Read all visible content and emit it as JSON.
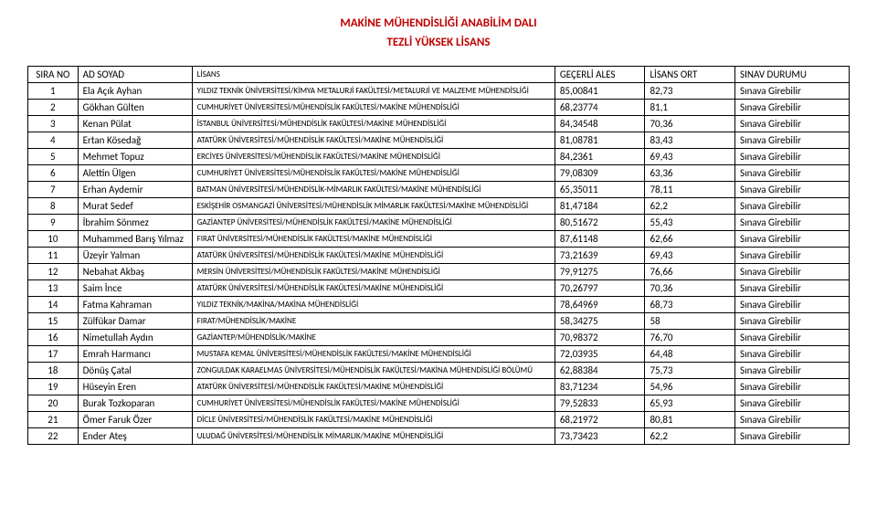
{
  "title": "MAKİNE MÜHENDİSLİĞİ ANABİLİM DALI",
  "subtitle": "TEZLİ YÜKSEK LİSANS",
  "columns": [
    "SIRA NO",
    "AD SOYAD",
    "LİSANS",
    "GEÇERLİ ALES",
    "LİSANS ORT",
    "SINAV DURUMU"
  ],
  "rows": [
    [
      "1",
      "Ela Açık Ayhan",
      "YILDIZ TEKNİK ÜNİVERSİTESİ/KİMYA METALURJİ FAKÜLTESİ/METALURJİ VE MALZEME MÜHENDİSLİĞİ",
      "85,00841",
      "82,73",
      "Sınava Girebilir"
    ],
    [
      "2",
      "Gökhan Gülten",
      "CUMHURİYET ÜNİVERSİTESİ/MÜHENDİSLİK FAKÜLTESİ/MAKİNE MÜHENDİSLİĞİ",
      "68,23774",
      "81,1",
      "Sınava Girebilir"
    ],
    [
      "3",
      "Kenan Pülat",
      "İSTANBUL ÜNİVERSİTESİ/MÜHENDİSLİK FAKÜLTESİ/MAKİNE MÜHENDİSLİĞİ",
      "84,34548",
      "70,36",
      "Sınava Girebilir"
    ],
    [
      "4",
      "Ertan Kösedağ",
      "ATATÜRK ÜNİVERSİTESİ/MÜHENDİSLİK FAKÜLTESİ/MAKİNE MÜHENDİSLİĞİ",
      "81,08781",
      "83,43",
      "Sınava Girebilir"
    ],
    [
      "5",
      "Mehmet Topuz",
      "ERCİYES ÜNİVERSİTESİ/MÜHENDİSLİK FAKÜLTESİ/MAKİNE MÜHENDİSLİĞİ",
      "84,2361",
      "69,43",
      "Sınava Girebilir"
    ],
    [
      "6",
      "Alettin Ülgen",
      "CUMHURİYET ÜNİVERSİTESİ/MÜHENDİSLİK FAKÜLTESİ/MAKİNE MÜHENDİSLİĞİ",
      "79,08309",
      "63,36",
      "Sınava Girebilir"
    ],
    [
      "7",
      "Erhan Aydemir",
      "BATMAN ÜNİVERSİTESİ/MÜHENDİSLİK-MİMARLIK FAKÜLTESİ/MAKİNE MÜHENDİSLİĞİ",
      "65,35011",
      "78,11",
      "Sınava Girebilir"
    ],
    [
      "8",
      "Murat Sedef",
      "ESKİŞEHİR OSMANGAZİ ÜNİVERSİTESİ/MÜHENDİSLİK MİMARLIK FAKÜLTESİ/MAKİNE MÜHENDİSLİĞİ",
      "81,47184",
      "62,2",
      "Sınava Girebilir"
    ],
    [
      "9",
      "İbrahim Sönmez",
      "GAZİANTEP ÜNİVERSİTESİ/MÜHENDİSLİK FAKÜLTESİ/MAKİNE MÜHENDİSLİĞİ",
      "80,51672",
      "55,43",
      "Sınava Girebilir"
    ],
    [
      "10",
      "Muhammed Barış Yılmaz",
      "FIRAT ÜNİVERSİTESİ/MÜHENDİSLİK FAKÜLTESİ/MAKİNE MÜHENDİSLİĞİ",
      "87,61148",
      "62,66",
      "Sınava Girebilir"
    ],
    [
      "11",
      "Üzeyir Yalman",
      "ATATÜRK ÜNİVERSİTESİ/MÜHENDİSLİK FAKÜLTESİ/MAKİNE MÜHENDİSLİĞİ",
      "73,21639",
      "69,43",
      "Sınava Girebilir"
    ],
    [
      "12",
      "Nebahat Akbaş",
      "MERSİN ÜNİVERSİTESİ/MÜHENDİSLİK FAKÜLTESİ/MAKİNE MÜHENDİSLİĞİ",
      "79,91275",
      "76,66",
      "Sınava Girebilir"
    ],
    [
      "13",
      "Saim İnce",
      "ATATÜRK ÜNİVERSİTESİ/MÜHENDİSLİK FAKÜLTESİ/MAKİNE MÜHENDİSLİĞİ",
      "70,26797",
      "70,36",
      "Sınava Girebilir"
    ],
    [
      "14",
      "Fatma Kahraman",
      "YILDIZ TEKNİK/MAKİNA/MAKİNA MÜHENDİSLİĞİ",
      "78,64969",
      "68,73",
      "Sınava Girebilir"
    ],
    [
      "15",
      "Zülfükar Damar",
      "FIRAT/MÜHENDİSLİK/MAKİNE",
      "58,34275",
      "58",
      "Sınava Girebilir"
    ],
    [
      "16",
      "Nimetullah Aydın",
      "GAZİANTEP/MÜHENDİSLİK/MAKİNE",
      "70,98372",
      "76,70",
      "Sınava Girebilir"
    ],
    [
      "17",
      "Emrah Harmancı",
      "MUSTAFA KEMAL ÜNİVERSİTESİ/MÜHENDİSLİK FAKÜLTESİ/MAKİNE MÜHENDİSLİĞİ",
      "72,03935",
      "64,48",
      "Sınava Girebilir"
    ],
    [
      "18",
      "Dönüş Çatal",
      "ZONGULDAK KARAELMAS ÜNİVERSİTESİ/MÜHENDİSLİK FAKÜLTESİ/MAKİNA MÜHENDİSLİĞİ BÖLÜMÜ",
      "62,88384",
      "75,73",
      "Sınava Girebilir"
    ],
    [
      "19",
      "Hüseyin Eren",
      "ATATÜRK ÜNİVERSİTESİ/MÜHENDİSLİK FAKÜLTESİ/MAKİNE MÜHENDİSLİĞİ",
      "83,71234",
      "54,96",
      "Sınava Girebilir"
    ],
    [
      "20",
      "Burak Tozkoparan",
      "CUMHURİYET ÜNİVERSİTESİ/MÜHENDİSLİK FAKÜLTESİ/MAKİNE MÜHENDİSLİĞİ",
      "79,52833",
      "65,93",
      "Sınava Girebilir"
    ],
    [
      "21",
      "Ömer Faruk Özer",
      "DİCLE ÜNİVERSİTESİ/MÜHENDİSLİK FAKÜLTESİ/MAKİNE MÜHENDİSLİĞİ",
      "68,21972",
      "80,81",
      "Sınava Girebilir"
    ],
    [
      "22",
      "Ender Ateş",
      "ULUDAĞ ÜNİVERSİTESİ/MÜHENDİSLİK MİMARLIK/MAKİNE MÜHENDİSLİĞİ",
      "73,73423",
      "62,2",
      "Sınava Girebilir"
    ]
  ]
}
